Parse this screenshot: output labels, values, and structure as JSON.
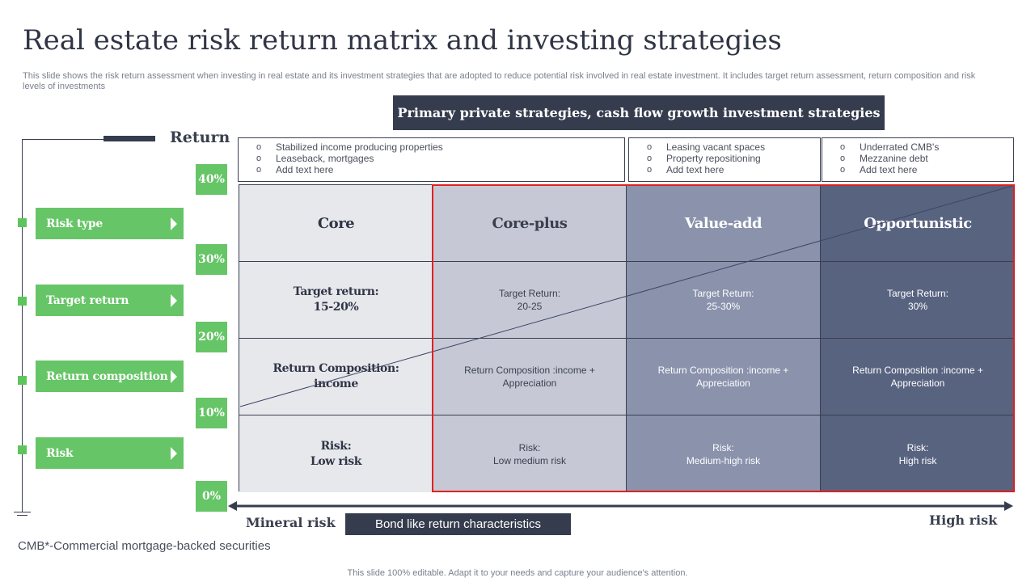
{
  "title": "Real estate risk return matrix and investing strategies",
  "description": "This slide shows the risk return assessment when investing in real estate and its investment strategies that are adopted to reduce potential risk involved in real estate investment. It includes target return assessment, return composition and risk levels of investments",
  "banner": "Primary private strategies, cash flow growth investment strategies",
  "top_boxes": [
    {
      "items": [
        "Stabilized income producing properties",
        "Leaseback, mortgages",
        "Add text here"
      ]
    },
    {
      "items": [
        "Leasing vacant spaces",
        "Property repositioning",
        "Add text here"
      ]
    },
    {
      "items": [
        "Underrated CMB's",
        "Mezzanine debt",
        "Add text here"
      ]
    }
  ],
  "return_label": "Return",
  "legend": [
    "Risk type",
    "Target return",
    "Return composition",
    "Risk"
  ],
  "percent_labels": [
    "40%",
    "30%",
    "20%",
    "10%",
    "0%"
  ],
  "matrix": {
    "headers": [
      "Core",
      "Core-plus",
      "Value-add",
      "Opportunistic"
    ],
    "rows": [
      [
        "Target return:\n15-20%",
        "Target  Return:\n20-25",
        "Target  Return:\n25-30%",
        "Target  Return:\n30%"
      ],
      [
        "Return Composition:\nincome",
        "Return Composition :income +\nAppreciation",
        "Return Composition :income  +\nAppreciation",
        "Return Composition :income +\nAppreciation"
      ],
      [
        "Risk:\nLow risk",
        "Risk:\nLow medium risk",
        "Risk:\nMedium-high risk",
        "Risk:\nHigh risk"
      ]
    ]
  },
  "colors": {
    "accent_green": "#66c566",
    "dark": "#353c4d",
    "highlight_red": "#e02020"
  },
  "axis": {
    "left_label": "Mineral risk",
    "center_label": "Bond like return characteristics",
    "right_label": "High risk"
  },
  "footnote": "CMB*-Commercial mortgage-backed securities",
  "footer": "This slide 100% editable. Adapt it to your needs and capture your audience's attention."
}
